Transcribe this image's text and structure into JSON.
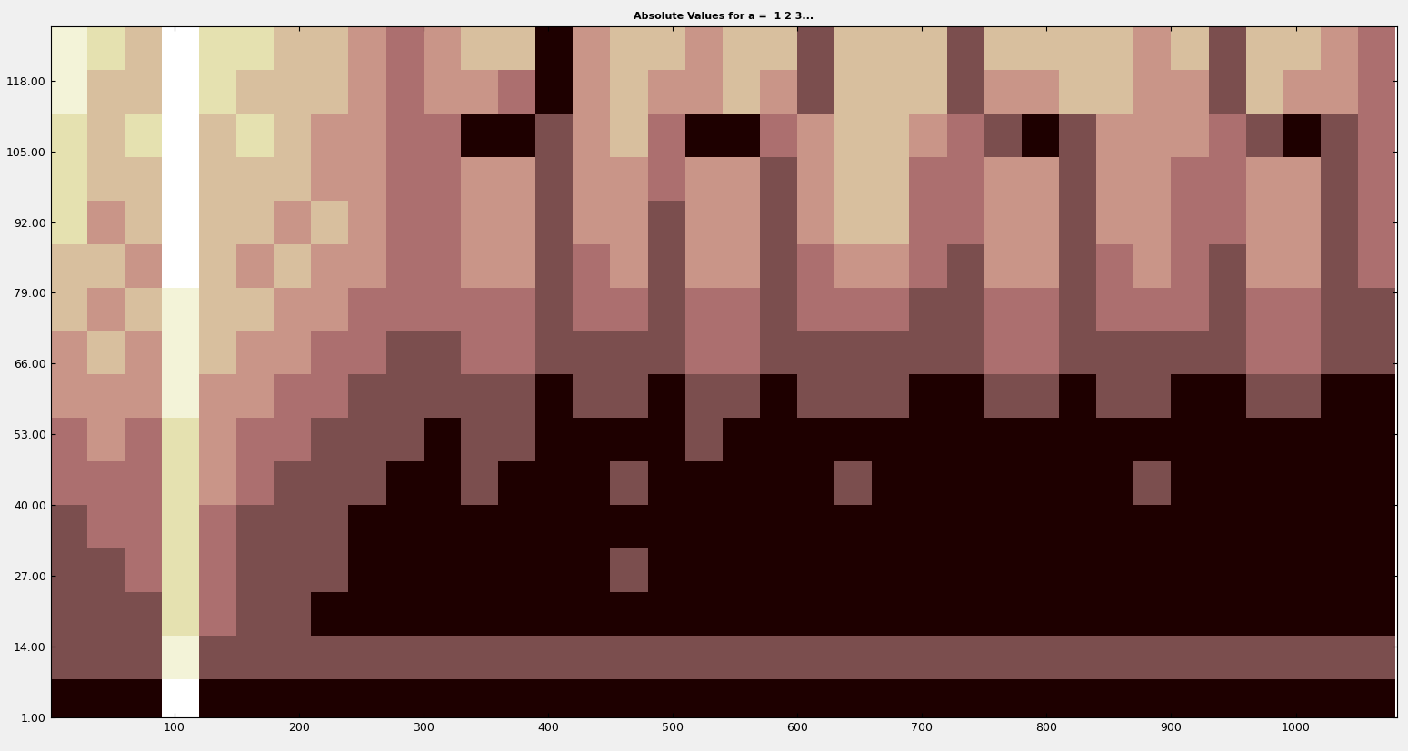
{
  "chart_data": {
    "type": "heatmap",
    "title": "Absolute Values for a =  1 2 3...",
    "xlim": [
      1,
      1081
    ],
    "ylim": [
      1,
      128
    ],
    "xticks": [
      100,
      200,
      300,
      400,
      500,
      600,
      700,
      800,
      900,
      1000
    ],
    "yticks": [
      {
        "value": 1,
        "label": "1.00"
      },
      {
        "value": 14,
        "label": "14.00"
      },
      {
        "value": 27,
        "label": "27.00"
      },
      {
        "value": 40,
        "label": "40.00"
      },
      {
        "value": 53,
        "label": "53.00"
      },
      {
        "value": 66,
        "label": "66.00"
      },
      {
        "value": 79,
        "label": "79.00"
      },
      {
        "value": 92,
        "label": "92.00"
      },
      {
        "value": 105,
        "label": "105.00"
      },
      {
        "value": 118,
        "label": "118.00"
      }
    ],
    "x": [
      15,
      45,
      75,
      105,
      135,
      165,
      195,
      225,
      255,
      285,
      315,
      345,
      375,
      405,
      435,
      465,
      495,
      525,
      555,
      585,
      615,
      645,
      675,
      705,
      735,
      765,
      795,
      825,
      855,
      885,
      915,
      945,
      975,
      1005,
      1035,
      1065
    ],
    "y": [
      4,
      12,
      20,
      28,
      36,
      44,
      52,
      60,
      68,
      76,
      84,
      92,
      100,
      108,
      116,
      124
    ],
    "cells": [
      [
        2,
        2,
        2,
        9,
        2,
        2,
        2,
        2,
        2,
        2,
        2,
        2,
        2,
        2,
        2,
        2,
        2,
        2,
        2,
        2,
        2,
        2,
        2,
        2,
        2,
        2,
        2,
        2,
        2,
        2,
        2,
        2,
        2,
        2,
        2,
        2
      ],
      [
        3,
        3,
        3,
        8,
        3,
        3,
        3,
        3,
        3,
        3,
        3,
        3,
        3,
        3,
        3,
        3,
        3,
        3,
        3,
        3,
        3,
        3,
        3,
        3,
        3,
        3,
        3,
        3,
        3,
        3,
        3,
        3,
        3,
        3,
        3,
        3
      ],
      [
        3,
        3,
        3,
        7,
        4,
        3,
        3,
        2,
        2,
        2,
        2,
        2,
        2,
        2,
        2,
        2,
        2,
        2,
        2,
        2,
        2,
        2,
        2,
        2,
        2,
        2,
        2,
        2,
        2,
        2,
        2,
        2,
        2,
        2,
        2,
        2
      ],
      [
        3,
        3,
        4,
        7,
        4,
        3,
        3,
        3,
        2,
        2,
        2,
        2,
        2,
        2,
        2,
        3,
        2,
        2,
        2,
        2,
        2,
        2,
        2,
        2,
        2,
        2,
        2,
        2,
        2,
        2,
        2,
        2,
        2,
        2,
        2,
        2
      ],
      [
        3,
        4,
        4,
        7,
        4,
        3,
        3,
        3,
        2,
        2,
        2,
        2,
        2,
        2,
        2,
        2,
        2,
        2,
        2,
        2,
        2,
        2,
        2,
        2,
        2,
        2,
        2,
        2,
        2,
        2,
        2,
        2,
        2,
        2,
        2,
        2
      ],
      [
        4,
        4,
        4,
        7,
        5,
        4,
        3,
        3,
        3,
        2,
        2,
        3,
        2,
        2,
        2,
        3,
        2,
        2,
        2,
        2,
        2,
        3,
        2,
        2,
        2,
        2,
        2,
        2,
        2,
        3,
        2,
        2,
        2,
        2,
        2,
        2
      ],
      [
        4,
        5,
        4,
        7,
        5,
        4,
        4,
        3,
        3,
        3,
        2,
        3,
        3,
        2,
        2,
        2,
        2,
        3,
        2,
        2,
        2,
        2,
        2,
        2,
        2,
        2,
        2,
        2,
        2,
        2,
        2,
        2,
        2,
        2,
        2,
        2
      ],
      [
        5,
        5,
        5,
        8,
        5,
        5,
        4,
        4,
        3,
        3,
        3,
        3,
        3,
        2,
        3,
        3,
        2,
        3,
        3,
        2,
        3,
        3,
        3,
        2,
        2,
        3,
        3,
        2,
        3,
        3,
        2,
        2,
        3,
        3,
        2,
        2
      ],
      [
        5,
        6,
        5,
        8,
        6,
        5,
        5,
        4,
        4,
        3,
        3,
        4,
        4,
        3,
        3,
        3,
        3,
        4,
        4,
        3,
        3,
        3,
        3,
        3,
        3,
        4,
        4,
        3,
        3,
        3,
        3,
        3,
        4,
        4,
        3,
        3
      ],
      [
        6,
        5,
        6,
        8,
        6,
        6,
        5,
        5,
        4,
        4,
        4,
        4,
        4,
        3,
        4,
        4,
        3,
        4,
        4,
        3,
        4,
        4,
        4,
        3,
        3,
        4,
        4,
        3,
        4,
        4,
        4,
        3,
        4,
        4,
        3,
        3
      ],
      [
        6,
        6,
        5,
        9,
        6,
        5,
        6,
        5,
        5,
        4,
        4,
        5,
        5,
        3,
        4,
        5,
        3,
        5,
        5,
        3,
        4,
        5,
        5,
        4,
        3,
        5,
        5,
        3,
        4,
        5,
        4,
        3,
        5,
        5,
        3,
        4
      ],
      [
        7,
        5,
        6,
        9,
        6,
        6,
        5,
        6,
        5,
        4,
        4,
        5,
        5,
        3,
        5,
        5,
        3,
        5,
        5,
        3,
        5,
        6,
        6,
        4,
        4,
        5,
        5,
        3,
        5,
        5,
        4,
        4,
        5,
        5,
        3,
        4
      ],
      [
        7,
        6,
        6,
        9,
        6,
        6,
        6,
        5,
        5,
        4,
        4,
        5,
        5,
        3,
        5,
        5,
        4,
        5,
        5,
        3,
        5,
        6,
        6,
        4,
        4,
        5,
        5,
        3,
        5,
        5,
        4,
        4,
        5,
        5,
        3,
        4
      ],
      [
        7,
        6,
        7,
        9,
        6,
        7,
        6,
        5,
        5,
        4,
        4,
        2,
        2,
        3,
        5,
        6,
        4,
        2,
        2,
        4,
        5,
        6,
        6,
        5,
        4,
        3,
        2,
        3,
        5,
        5,
        5,
        4,
        3,
        2,
        3,
        4
      ],
      [
        8,
        6,
        6,
        9,
        7,
        6,
        6,
        6,
        5,
        4,
        5,
        5,
        4,
        2,
        5,
        6,
        5,
        5,
        6,
        5,
        3,
        6,
        6,
        6,
        3,
        5,
        5,
        6,
        6,
        5,
        5,
        3,
        6,
        5,
        5,
        4
      ],
      [
        8,
        7,
        6,
        9,
        7,
        7,
        6,
        6,
        5,
        4,
        5,
        6,
        6,
        2,
        5,
        6,
        6,
        5,
        6,
        6,
        3,
        6,
        6,
        6,
        3,
        6,
        6,
        6,
        6,
        5,
        6,
        3,
        6,
        6,
        5,
        4
      ]
    ]
  }
}
